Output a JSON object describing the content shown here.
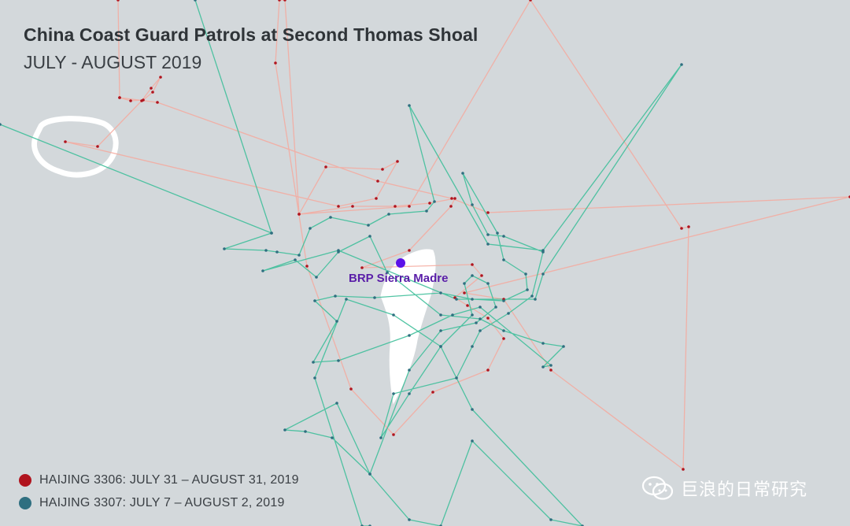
{
  "header": {
    "title": "China Coast Guard Patrols at Second Thomas Shoal",
    "subtitle": "JULY - AUGUST 2019"
  },
  "map": {
    "ship": {
      "label": "BRP Sierra Madre",
      "marker_color": "#5b12e8",
      "label_color": "#5a1ea8"
    },
    "land_color": "#ffffff",
    "water_color": "#d3d8db"
  },
  "legend": {
    "items": [
      {
        "label": "HAIJING 3306: JULY 31 – AUGUST 31, 2019",
        "color": "#b0141e",
        "track_color": "#f5a99e"
      },
      {
        "label": "HAIJING 3307: JULY 7 – AUGUST 2, 2019",
        "color": "#2f6f80",
        "track_color": "#3fbf9a"
      }
    ]
  },
  "watermark": {
    "text": "巨浪的日常研究",
    "icon": "wechat-icon"
  }
}
